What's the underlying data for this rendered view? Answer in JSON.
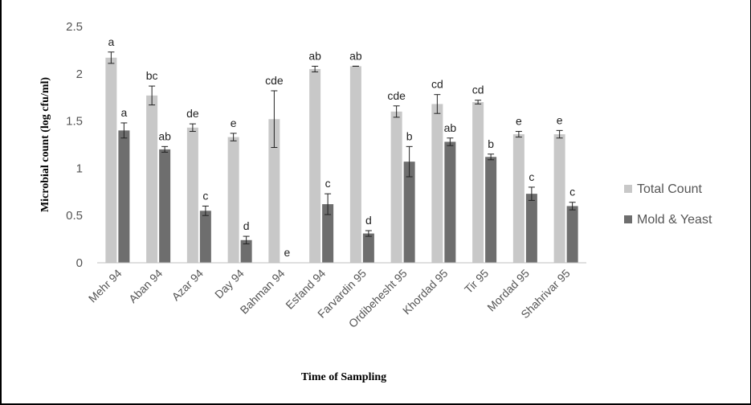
{
  "chart_data": {
    "type": "bar",
    "title": "",
    "xlabel": "Time of Sampling",
    "ylabel": "Microbial count (log cfu/ml)",
    "ylim": [
      0,
      2.5
    ],
    "yticks": [
      "0",
      "0.5",
      "1",
      "1.5",
      "2",
      "2.5"
    ],
    "grid": false,
    "legend_position": "right",
    "categories": [
      "Mehr 94",
      "Aban 94",
      "Azar 94",
      "Day 94",
      "Bahman 94",
      "Esfand 94",
      "Farvardin 95",
      "Ordibehesht 95",
      "Khordad 95",
      "Tir 95",
      "Mordad 95",
      "Shahrivar 95"
    ],
    "series": [
      {
        "name": "Total Count",
        "color": "#c8c8c8",
        "values": [
          2.17,
          1.77,
          1.43,
          1.33,
          1.52,
          2.05,
          2.08,
          1.6,
          1.68,
          1.7,
          1.36,
          1.36
        ],
        "errors": [
          0.06,
          0.1,
          0.04,
          0.04,
          0.3,
          0.03,
          0.0,
          0.06,
          0.1,
          0.02,
          0.03,
          0.04
        ],
        "labels": [
          "a",
          "bc",
          "de",
          "e",
          "cde",
          "ab",
          "ab",
          "cde",
          "cd",
          "cd",
          "e",
          "e"
        ]
      },
      {
        "name": "Mold & Yeast",
        "color": "#6e6e6e",
        "values": [
          1.4,
          1.2,
          0.55,
          0.24,
          0.0,
          0.62,
          0.31,
          1.07,
          1.28,
          1.12,
          0.73,
          0.6
        ],
        "errors": [
          0.08,
          0.03,
          0.05,
          0.04,
          0.0,
          0.11,
          0.03,
          0.16,
          0.04,
          0.03,
          0.07,
          0.04
        ],
        "labels": [
          "a",
          "ab",
          "c",
          "d",
          "e",
          "c",
          "d",
          "b",
          "ab",
          "b",
          "c",
          "c"
        ]
      }
    ]
  }
}
